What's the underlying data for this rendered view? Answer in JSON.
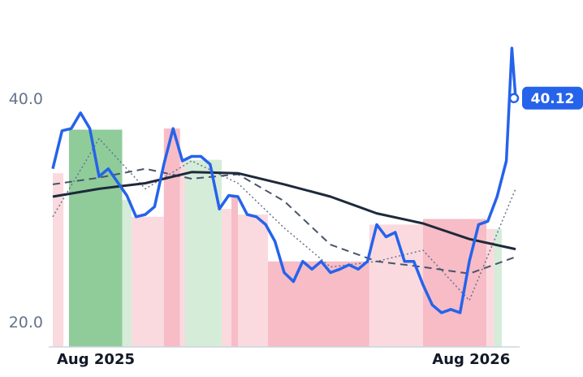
{
  "chart_data": {
    "type": "line",
    "xlim": [
      0,
      100
    ],
    "ylim": [
      17.84,
      46
    ],
    "yticks": [
      {
        "value": 20,
        "label": "20.0"
      },
      {
        "value": 40,
        "label": "40.0"
      }
    ],
    "xticks": [
      {
        "value": 9.3,
        "label": "Aug 2025"
      },
      {
        "value": 90.4,
        "label": "Aug 2026"
      }
    ],
    "regions": [
      {
        "start": 0,
        "end": 2.3,
        "top": 33.4,
        "color": "#fadadf"
      },
      {
        "start": 3.5,
        "end": 15,
        "top": 37.3,
        "color": "#8fcc9a"
      },
      {
        "start": 15,
        "end": 17,
        "top": 31.0,
        "color": "#d4ecd8"
      },
      {
        "start": 17,
        "end": 24,
        "top": 29.5,
        "color": "#fadadf"
      },
      {
        "start": 24,
        "end": 27.5,
        "top": 37.4,
        "color": "#f7bcc6"
      },
      {
        "start": 27.5,
        "end": 28.6,
        "top": 34.5,
        "color": "#fadadf"
      },
      {
        "start": 28.6,
        "end": 36.5,
        "top": 34.6,
        "color": "#d4ecd8"
      },
      {
        "start": 36.5,
        "end": 38.6,
        "top": 30.2,
        "color": "#fadadf"
      },
      {
        "start": 38.6,
        "end": 40,
        "top": 31.3,
        "color": "#f7bcc6"
      },
      {
        "start": 40,
        "end": 46.5,
        "top": 29.7,
        "color": "#fadadf"
      },
      {
        "start": 46.5,
        "end": 68.4,
        "top": 25.5,
        "color": "#f7bcc6"
      },
      {
        "start": 68.4,
        "end": 80,
        "top": 28.8,
        "color": "#fadadf"
      },
      {
        "start": 80,
        "end": 93.7,
        "top": 29.3,
        "color": "#f7bcc6"
      },
      {
        "start": 93.7,
        "end": 95.4,
        "top": 28.4,
        "color": "#fadadf"
      },
      {
        "start": 95.4,
        "end": 97,
        "top": 28.4,
        "color": "#d4ecd8"
      }
    ],
    "series": [
      {
        "color": "#2563eb",
        "style": "solid",
        "width": 3.5,
        "x": [
          0,
          2,
          4,
          6,
          8,
          10,
          12,
          14,
          16,
          18,
          20,
          22,
          24,
          26,
          28,
          30,
          32,
          34,
          36,
          38,
          40,
          42,
          44,
          46,
          48,
          50,
          52,
          54,
          56,
          58,
          60,
          62,
          64,
          66,
          68,
          70,
          72,
          74,
          76,
          78,
          80,
          82,
          84,
          86,
          88,
          90,
          92,
          94,
          96,
          98,
          99.2,
          100
        ],
        "values": [
          33.8,
          37.2,
          37.4,
          38.8,
          37.4,
          33.1,
          33.8,
          32.6,
          31.4,
          29.5,
          29.7,
          30.4,
          34.2,
          37.4,
          34.5,
          34.9,
          34.9,
          34.2,
          30.2,
          31.4,
          31.3,
          29.7,
          29.5,
          28.8,
          27.3,
          24.5,
          23.7,
          25.5,
          24.8,
          25.5,
          24.5,
          24.8,
          25.2,
          24.8,
          25.5,
          28.8,
          27.7,
          28.1,
          25.5,
          25.5,
          23.4,
          21.6,
          20.9,
          21.2,
          20.9,
          25.5,
          28.8,
          29.1,
          31.3,
          34.5,
          44.6,
          40.12
        ]
      },
      {
        "color": "#1e293b",
        "style": "solid",
        "width": 3,
        "x": [
          0,
          10,
          20,
          30,
          40,
          50,
          60,
          70,
          80,
          90,
          100
        ],
        "values": [
          31.3,
          32.0,
          32.5,
          33.5,
          33.4,
          32.4,
          31.3,
          29.8,
          28.9,
          27.5,
          26.6
        ]
      },
      {
        "color": "#475569",
        "style": "dashed",
        "width": 2,
        "x": [
          0,
          10,
          20,
          30,
          40,
          50,
          60,
          70,
          80,
          90,
          100
        ],
        "values": [
          32.4,
          33.0,
          33.8,
          32.9,
          33.3,
          30.9,
          27.0,
          25.5,
          25.0,
          24.4,
          25.9
        ]
      },
      {
        "color": "#64748b",
        "style": "dotted",
        "width": 1.5,
        "x": [
          0,
          10,
          20,
          30,
          40,
          50,
          60,
          70,
          80,
          90,
          100
        ],
        "values": [
          29.5,
          36.5,
          32.0,
          34.5,
          32.5,
          28.5,
          25.0,
          25.5,
          26.5,
          22.0,
          32.0
        ]
      }
    ]
  }
}
